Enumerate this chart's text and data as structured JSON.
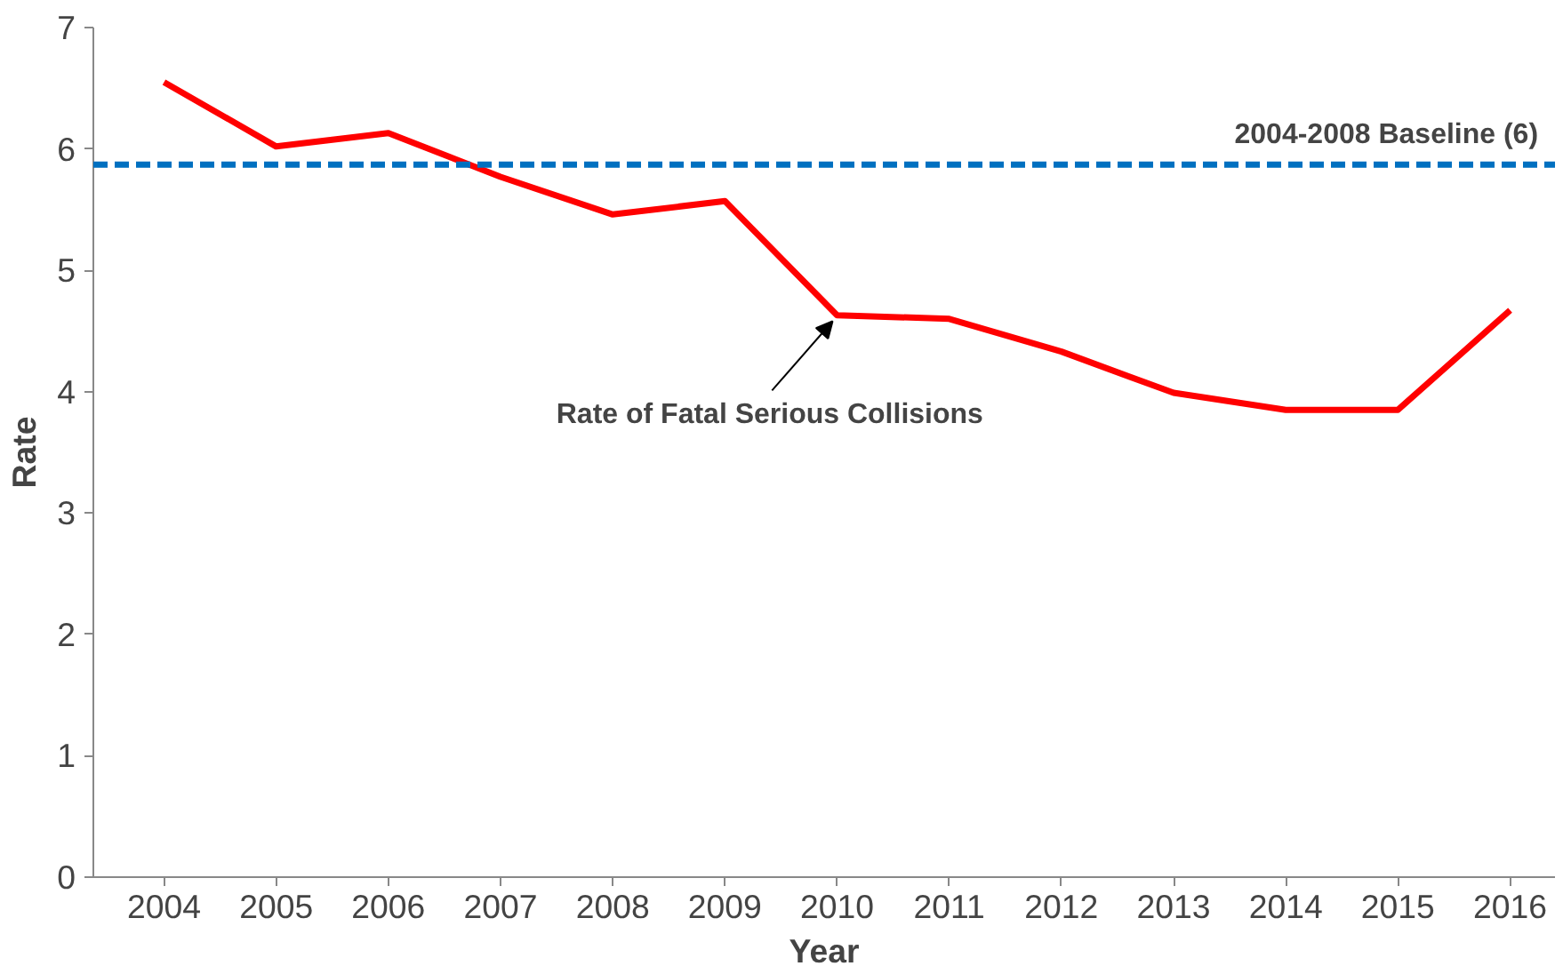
{
  "chart_data": {
    "type": "line",
    "xlabel": "Year",
    "ylabel": "Rate",
    "categories": [
      "2004",
      "2005",
      "2006",
      "2007",
      "2008",
      "2009",
      "2010",
      "2011",
      "2012",
      "2013",
      "2014",
      "2015",
      "2016"
    ],
    "series": [
      {
        "color": "#ff0000",
        "values": [
          6.55,
          6.02,
          6.13,
          5.77,
          5.46,
          5.57,
          4.63,
          4.6,
          4.33,
          3.99,
          3.85,
          3.85,
          4.67
        ]
      }
    ],
    "ylim": [
      0,
      7
    ],
    "yticks": [
      0,
      1,
      2,
      3,
      4,
      5,
      6,
      7
    ],
    "grid": false,
    "marker": "none",
    "line_style": "solid",
    "ref_lines": [
      {
        "axis": "y",
        "value": 5.87,
        "label": "2004-2008 Baseline (6)",
        "color": "#0070c0",
        "line_style": "dashed"
      }
    ],
    "annotations": [
      {
        "text": "Rate of Fatal Serious Collisions",
        "x": "2010",
        "y": 4.63
      }
    ]
  }
}
